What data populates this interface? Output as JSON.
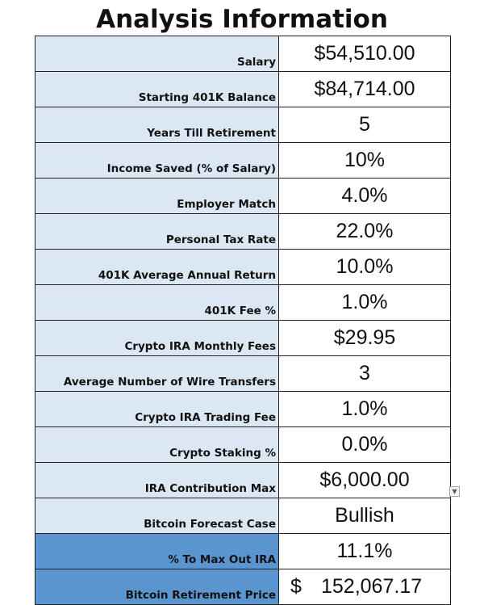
{
  "title": "Analysis Information",
  "rows": [
    {
      "label": "Salary",
      "value": "$54,510.00"
    },
    {
      "label": "Starting 401K Balance",
      "value": "$84,714.00"
    },
    {
      "label": "Years Till Retirement",
      "value": "5"
    },
    {
      "label": "Income Saved (% of Salary)",
      "value": "10%"
    },
    {
      "label": "Employer Match",
      "value": "4.0%"
    },
    {
      "label": "Personal Tax Rate",
      "value": "22.0%"
    },
    {
      "label": "401K Average Annual Return",
      "value": "10.0%"
    },
    {
      "label": "401K Fee %",
      "value": "1.0%"
    },
    {
      "label": "Crypto IRA Monthly Fees",
      "value": "$29.95"
    },
    {
      "label": "Average Number of Wire Transfers",
      "value": "3"
    },
    {
      "label": "Crypto IRA Trading Fee",
      "value": "1.0%"
    },
    {
      "label": "Crypto Staking %",
      "value": "0.0%"
    },
    {
      "label": "IRA Contribution Max",
      "value": "$6,000.00"
    },
    {
      "label": "Bitcoin Forecast Case",
      "value": "Bullish"
    },
    {
      "label": "% To Max Out IRA",
      "value": "11.1%"
    },
    {
      "label": "Bitcoin Retirement Price",
      "currency": "$",
      "amount": "152,067.17"
    }
  ],
  "dropdown_icon": "chevron-down-icon",
  "colors": {
    "label_bg": "#dbe7f3",
    "label_bg_dark": "#5b95cf",
    "border": "#1f1f1f"
  }
}
